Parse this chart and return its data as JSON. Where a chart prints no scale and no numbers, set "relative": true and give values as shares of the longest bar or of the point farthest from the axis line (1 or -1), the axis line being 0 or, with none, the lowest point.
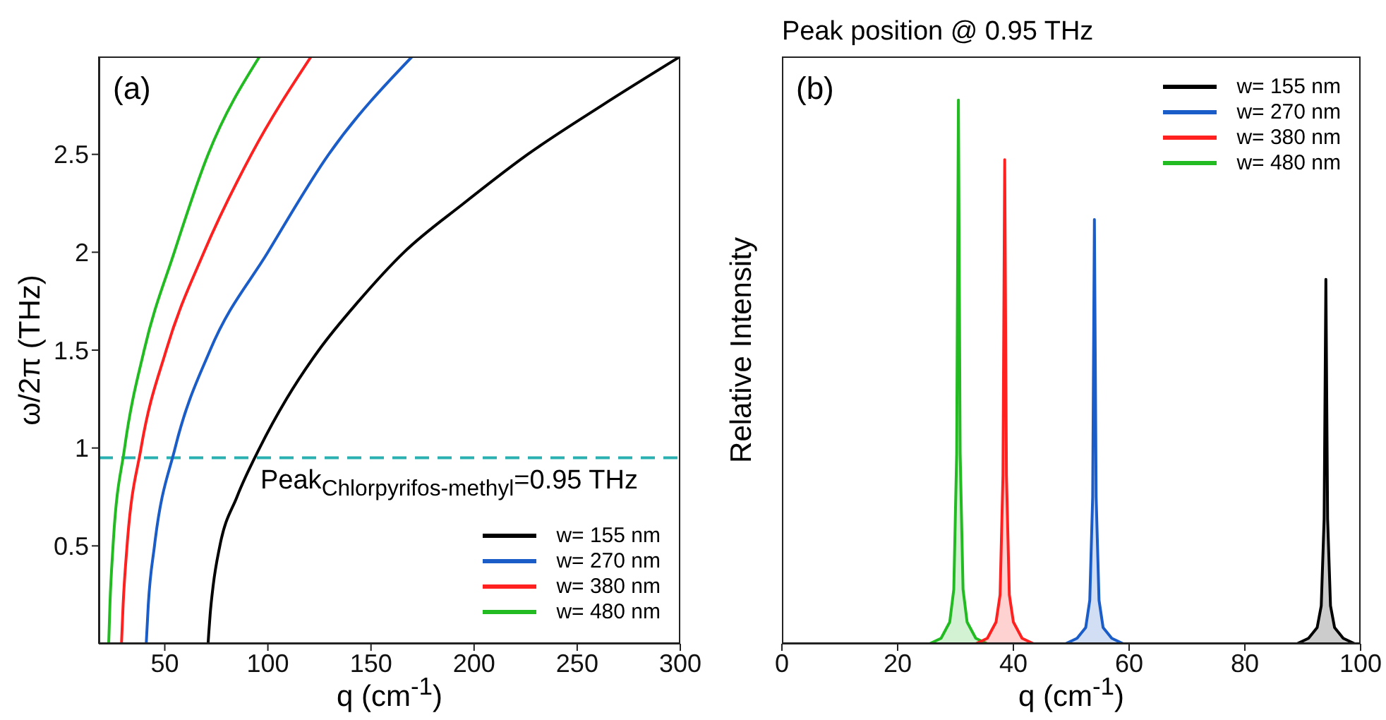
{
  "chart_data": [
    {
      "type": "line",
      "xlabel": "q (cm$^{-1}$)",
      "ylabel": "ω/2π (THz)",
      "annotations": [
        "(a)"
      ],
      "xlim": [
        18,
        300
      ],
      "ylim": [
        0,
        3.0
      ],
      "xticks": [
        50,
        100,
        150,
        200,
        250,
        300
      ],
      "yticks": [
        0.5,
        1.0,
        1.5,
        2.0,
        2.5
      ],
      "legend": "bottom right",
      "line_style": "solid",
      "ref_lines": [
        {
          "axis": "y",
          "value": 0.95,
          "label": "Peak$_{Chlorpyrifos-methyl}$=0.95 THz",
          "color": "#2ab0b0",
          "line_style": "dashed"
        }
      ],
      "series": [
        {
          "name": "w= 155 nm",
          "color": "#000000",
          "x": [
            71,
            71.3,
            72,
            73.5,
            76.7,
            85,
            96,
            109,
            124.7,
            144,
            166,
            195,
            226,
            262,
            300
          ],
          "values": [
            0,
            0.05,
            0.15,
            0.3,
            0.5,
            0.75,
            1.0,
            1.25,
            1.5,
            1.75,
            2.0,
            2.25,
            2.5,
            2.75,
            3.0
          ]
        },
        {
          "name": "w= 270 nm",
          "color": "#1a5cc8",
          "x": [
            41,
            42,
            45,
            55,
            72,
            100,
            129.5,
            170
          ],
          "values": [
            0,
            0.2,
            0.5,
            1.0,
            1.5,
            2.0,
            2.5,
            3.0
          ]
        },
        {
          "name": "w= 380 nm",
          "color": "#ff2020",
          "x": [
            29,
            29.8,
            31.7,
            38.5,
            50.7,
            69,
            92,
            121
          ],
          "values": [
            0,
            0.2,
            0.5,
            1.0,
            1.5,
            2.0,
            2.5,
            3.0
          ]
        },
        {
          "name": "w= 480 nm",
          "color": "#22bb22",
          "x": [
            22.8,
            23.4,
            24.9,
            30.5,
            40,
            54.6,
            71,
            96
          ],
          "values": [
            0,
            0.2,
            0.5,
            1.0,
            1.5,
            2.0,
            2.5,
            3.0
          ]
        }
      ]
    },
    {
      "type": "area",
      "title": "Peak position @ 0.95 THz",
      "xlabel": "q (cm$^{-1}$)",
      "ylabel": "Relative Intensity",
      "annotations": [
        "(b)"
      ],
      "relative": true,
      "xlim": [
        0,
        100
      ],
      "xticks": [
        0,
        20,
        40,
        60,
        80,
        100
      ],
      "legend": "top right",
      "tick_labels": "x",
      "series": [
        {
          "name": "w= 155 nm",
          "color": "#000000",
          "x": [
            0,
            89,
            91,
            92.5,
            93.2,
            93.7,
            94,
            94.3,
            94.8,
            95.5,
            97,
            99,
            100
          ],
          "values": [
            0,
            0,
            0.01,
            0.03,
            0.07,
            0.23,
            0.67,
            0.23,
            0.07,
            0.03,
            0.01,
            0,
            0
          ]
        },
        {
          "name": "w= 270 nm",
          "color": "#1a5cc8",
          "x": [
            0,
            49,
            51,
            52.5,
            53.2,
            53.7,
            54,
            54.3,
            54.8,
            55.5,
            57,
            59,
            100
          ],
          "values": [
            0,
            0,
            0.01,
            0.03,
            0.08,
            0.27,
            0.78,
            0.27,
            0.08,
            0.03,
            0.01,
            0,
            0
          ]
        },
        {
          "name": "w= 380 nm",
          "color": "#ff2020",
          "x": [
            0,
            33.5,
            35.5,
            37,
            37.7,
            38.2,
            38.5,
            38.8,
            39.3,
            40,
            41.5,
            43.5,
            100
          ],
          "values": [
            0,
            0,
            0.01,
            0.04,
            0.09,
            0.31,
            0.89,
            0.31,
            0.09,
            0.04,
            0.01,
            0,
            0
          ]
        },
        {
          "name": "w= 480 nm",
          "color": "#22bb22",
          "x": [
            0,
            25.5,
            27.5,
            29,
            29.7,
            30.2,
            30.5,
            30.8,
            31.3,
            32,
            33.5,
            35.5,
            100
          ],
          "values": [
            0,
            0,
            0.01,
            0.04,
            0.1,
            0.35,
            1,
            0.35,
            0.1,
            0.04,
            0.01,
            0,
            0
          ]
        }
      ]
    }
  ]
}
